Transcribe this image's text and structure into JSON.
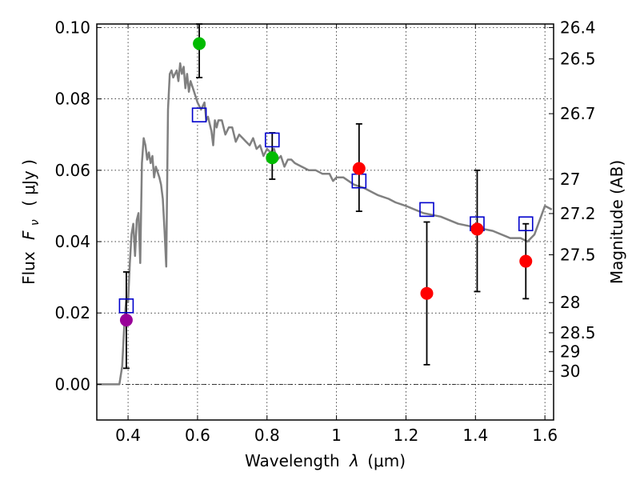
{
  "chart_data": {
    "type": "scatter",
    "title": "",
    "xlabel": "Wavelength  λ (μm)",
    "ylabel": "Flux  F_ν  ( μJy )",
    "ylabel_parts": {
      "a": "Flux",
      "b": "F",
      "sub": "ν",
      "c": "( μJy )"
    },
    "xlabel_parts": {
      "a": "Wavelength",
      "b": "λ",
      "c": "(μm)"
    },
    "y2label": "Magnitude (AB)",
    "xlim": [
      0.31,
      1.625
    ],
    "ylim": [
      -0.01,
      0.101
    ],
    "x_ticks": [
      {
        "value": 0.4,
        "label": "0.4"
      },
      {
        "value": 0.6,
        "label": "0.6"
      },
      {
        "value": 0.8,
        "label": "0.8"
      },
      {
        "value": 1.0,
        "label": "1"
      },
      {
        "value": 1.2,
        "label": "1.2"
      },
      {
        "value": 1.4,
        "label": "1.4"
      },
      {
        "value": 1.6,
        "label": "1.6"
      }
    ],
    "y_ticks": [
      {
        "value": 0.0,
        "label": "0.00"
      },
      {
        "value": 0.02,
        "label": "0.02"
      },
      {
        "value": 0.04,
        "label": "0.04"
      },
      {
        "value": 0.06,
        "label": "0.06"
      },
      {
        "value": 0.08,
        "label": "0.08"
      },
      {
        "value": 0.1,
        "label": "0.10"
      }
    ],
    "y2_ticks": [
      {
        "value": 26.4,
        "label": "26.4"
      },
      {
        "value": 26.5,
        "label": "26.5"
      },
      {
        "value": 26.7,
        "label": "26.7"
      },
      {
        "value": 27.0,
        "label": "27"
      },
      {
        "value": 27.2,
        "label": "27.2"
      },
      {
        "value": 27.5,
        "label": "27.5"
      },
      {
        "value": 28.0,
        "label": "28"
      },
      {
        "value": 28.5,
        "label": "28.5"
      },
      {
        "value": 29.0,
        "label": "29"
      },
      {
        "value": 30.0,
        "label": "30"
      }
    ],
    "grid": true,
    "colors": {
      "sed_line": "#808080",
      "model": "#0000cc",
      "purple": "#990099",
      "green": "#00bb00",
      "red": "#ff0000",
      "errorbar": "#000000"
    },
    "series": [
      {
        "name": "SED model spectrum",
        "kind": "line",
        "x": [
          0.31,
          0.375,
          0.383,
          0.39,
          0.395,
          0.4,
          0.405,
          0.41,
          0.415,
          0.42,
          0.425,
          0.43,
          0.435,
          0.44,
          0.445,
          0.45,
          0.455,
          0.46,
          0.465,
          0.47,
          0.475,
          0.48,
          0.49,
          0.495,
          0.5,
          0.505,
          0.51,
          0.515,
          0.52,
          0.525,
          0.53,
          0.54,
          0.545,
          0.55,
          0.555,
          0.56,
          0.565,
          0.57,
          0.575,
          0.58,
          0.59,
          0.6,
          0.61,
          0.62,
          0.625,
          0.63,
          0.64,
          0.645,
          0.65,
          0.655,
          0.66,
          0.67,
          0.68,
          0.69,
          0.7,
          0.71,
          0.72,
          0.73,
          0.74,
          0.75,
          0.76,
          0.77,
          0.78,
          0.79,
          0.8,
          0.81,
          0.82,
          0.83,
          0.84,
          0.85,
          0.86,
          0.87,
          0.88,
          0.9,
          0.92,
          0.94,
          0.96,
          0.98,
          0.99,
          1.0,
          1.02,
          1.05,
          1.08,
          1.1,
          1.12,
          1.15,
          1.17,
          1.2,
          1.25,
          1.3,
          1.35,
          1.4,
          1.45,
          1.5,
          1.53,
          1.55,
          1.57,
          1.6,
          1.62
        ],
        "y": [
          0.0,
          0.0,
          0.005,
          0.018,
          0.024,
          0.023,
          0.034,
          0.042,
          0.045,
          0.036,
          0.046,
          0.048,
          0.034,
          0.062,
          0.069,
          0.067,
          0.063,
          0.065,
          0.062,
          0.064,
          0.058,
          0.061,
          0.058,
          0.056,
          0.052,
          0.043,
          0.033,
          0.077,
          0.087,
          0.088,
          0.086,
          0.088,
          0.085,
          0.09,
          0.087,
          0.089,
          0.083,
          0.087,
          0.082,
          0.085,
          0.082,
          0.079,
          0.077,
          0.079,
          0.074,
          0.075,
          0.071,
          0.067,
          0.074,
          0.072,
          0.074,
          0.074,
          0.07,
          0.072,
          0.072,
          0.068,
          0.07,
          0.069,
          0.068,
          0.067,
          0.069,
          0.066,
          0.067,
          0.064,
          0.066,
          0.065,
          0.066,
          0.063,
          0.064,
          0.061,
          0.063,
          0.063,
          0.062,
          0.061,
          0.06,
          0.06,
          0.059,
          0.059,
          0.057,
          0.058,
          0.058,
          0.056,
          0.055,
          0.054,
          0.053,
          0.052,
          0.051,
          0.05,
          0.048,
          0.047,
          0.045,
          0.044,
          0.043,
          0.041,
          0.041,
          0.04,
          0.042,
          0.05,
          0.049
        ]
      },
      {
        "name": "model photometry",
        "kind": "square",
        "x": [
          0.395,
          0.605,
          0.815,
          1.065,
          1.26,
          1.405,
          1.545
        ],
        "y": [
          0.022,
          0.0755,
          0.0685,
          0.057,
          0.049,
          0.045,
          0.045
        ]
      },
      {
        "name": "observed (purple)",
        "kind": "circle",
        "color": "purple",
        "x": [
          0.395
        ],
        "y": [
          0.018
        ],
        "err_low": [
          0.0045
        ],
        "err_high": [
          0.0315
        ]
      },
      {
        "name": "observed (green)",
        "kind": "circle",
        "color": "green",
        "x": [
          0.605,
          0.815
        ],
        "y": [
          0.0955,
          0.0635
        ],
        "err_low": [
          0.086,
          0.0575
        ],
        "err_high": [
          0.101,
          0.0705
        ]
      },
      {
        "name": "observed (red)",
        "kind": "circle",
        "color": "red",
        "x": [
          1.065,
          1.26,
          1.405,
          1.545
        ],
        "y": [
          0.0605,
          0.0255,
          0.0435,
          0.0345
        ],
        "err_low": [
          0.0485,
          0.0055,
          0.026,
          0.024
        ],
        "err_high": [
          0.073,
          0.0455,
          0.06,
          0.045
        ]
      }
    ]
  }
}
